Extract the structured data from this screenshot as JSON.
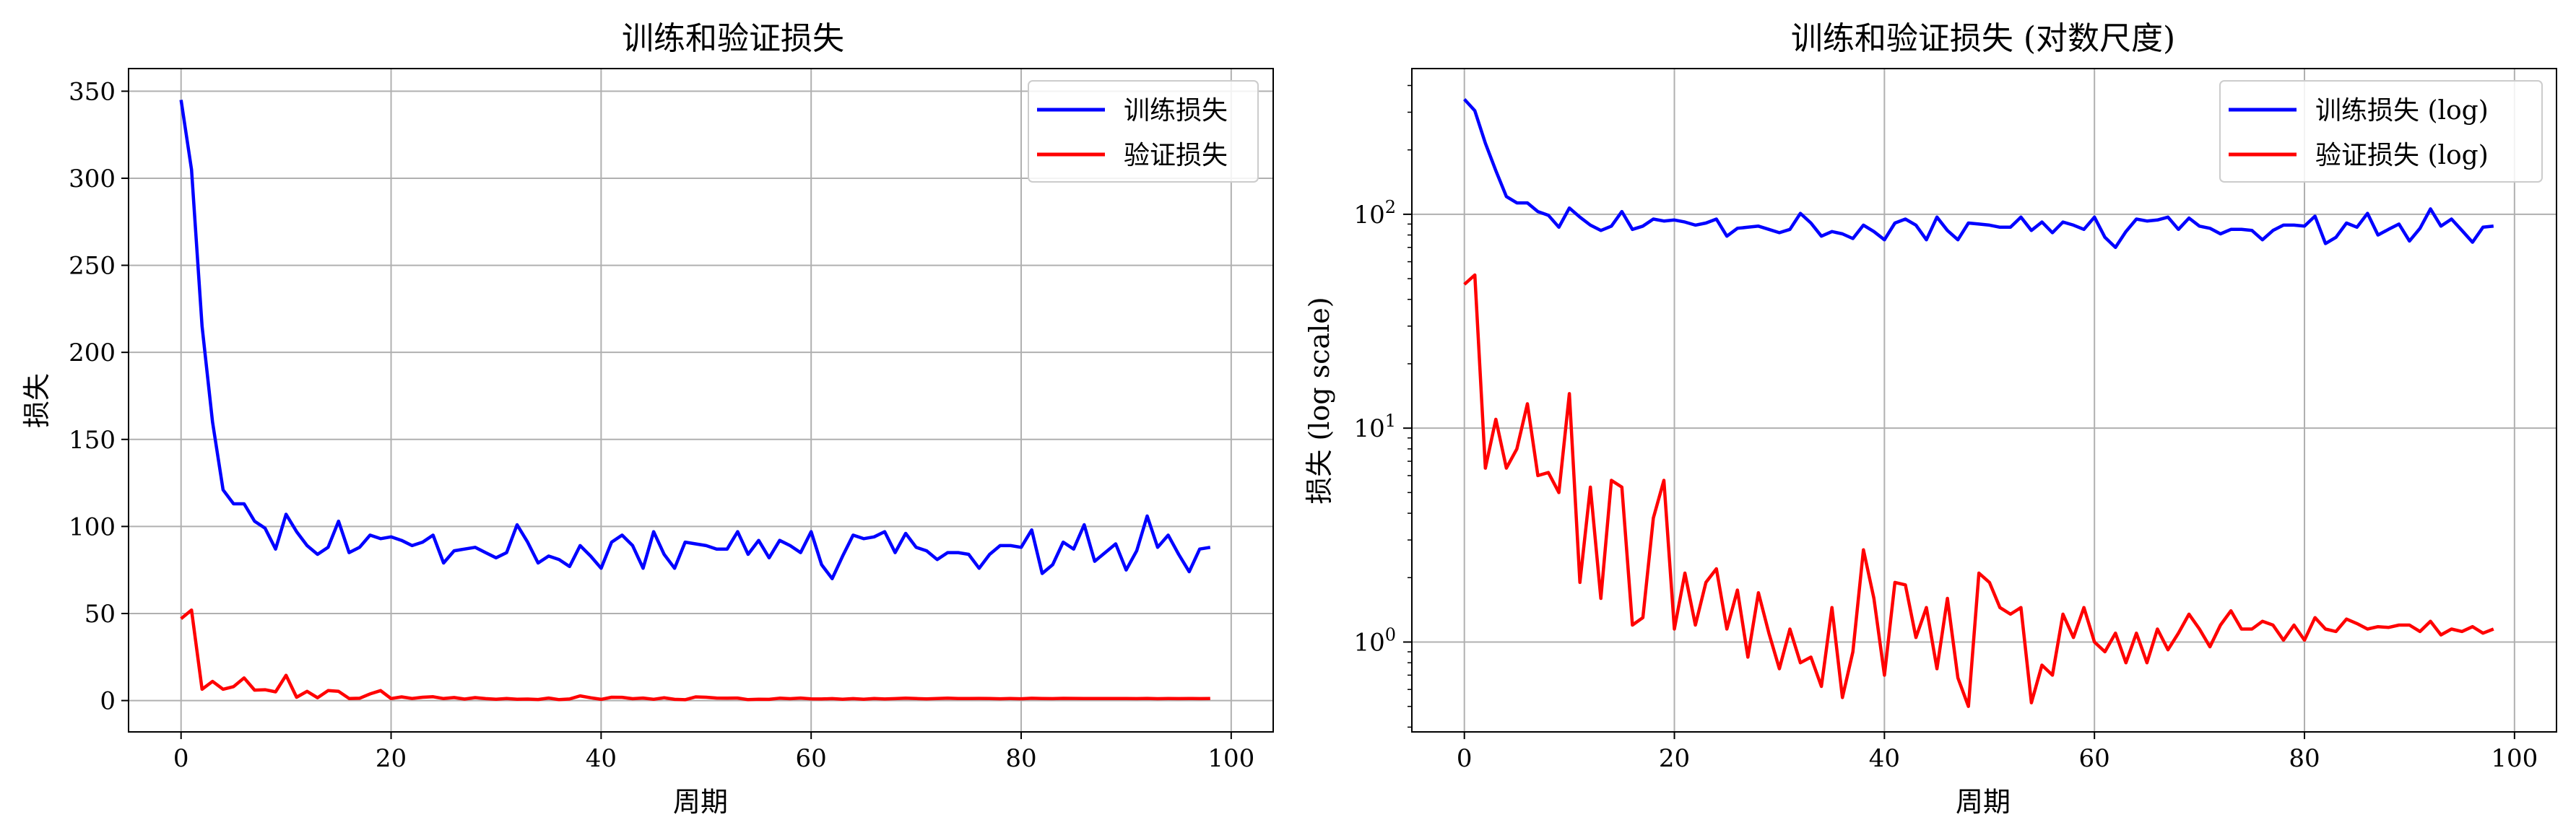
{
  "colors": {
    "train": "#0000ff",
    "val": "#ff0000",
    "grid": "#b0b0b0"
  },
  "chart_data": [
    {
      "type": "line",
      "title": "训练和验证损失",
      "xlabel": "周期",
      "ylabel": "损失",
      "yscale": "linear",
      "xlim": [
        -5,
        104
      ],
      "ylim": [
        -18,
        363
      ],
      "xticks": [
        "0",
        "20",
        "40",
        "60",
        "80",
        "100"
      ],
      "yticks": [
        "0",
        "50",
        "100",
        "150",
        "200",
        "250",
        "300",
        "350"
      ],
      "grid": true,
      "legend_position": "top-right",
      "x": [
        0,
        1,
        2,
        3,
        4,
        5,
        6,
        7,
        8,
        9,
        10,
        11,
        12,
        13,
        14,
        15,
        16,
        17,
        18,
        19,
        20,
        21,
        22,
        23,
        24,
        25,
        26,
        27,
        28,
        29,
        30,
        31,
        32,
        33,
        34,
        35,
        36,
        37,
        38,
        39,
        40,
        41,
        42,
        43,
        44,
        45,
        46,
        47,
        48,
        49,
        50,
        51,
        52,
        53,
        54,
        55,
        56,
        57,
        58,
        59,
        60,
        61,
        62,
        63,
        64,
        65,
        66,
        67,
        68,
        69,
        70,
        71,
        72,
        73,
        74,
        75,
        76,
        77,
        78,
        79,
        80,
        81,
        82,
        83,
        84,
        85,
        86,
        87,
        88,
        89,
        90,
        91,
        92,
        93,
        94,
        95,
        96,
        97,
        98
      ],
      "series": [
        {
          "name": "训练损失",
          "color": "train",
          "values": [
            345,
            305,
            215,
            160,
            121,
            113,
            113,
            103,
            99,
            87,
            107,
            97,
            89,
            84,
            88,
            103,
            85,
            88,
            95,
            93,
            94,
            92,
            89,
            91,
            95,
            79,
            86,
            87,
            88,
            85,
            82,
            85,
            101,
            91,
            79,
            83,
            81,
            77,
            89,
            83,
            76,
            91,
            95,
            89,
            76,
            97,
            84,
            76,
            91,
            90,
            89,
            87,
            87,
            97,
            84,
            92,
            82,
            92,
            89,
            85,
            97,
            78,
            70,
            83,
            95,
            93,
            94,
            97,
            85,
            96,
            88,
            86,
            81,
            85,
            85,
            84,
            76,
            84,
            89,
            89,
            88,
            98,
            73,
            78,
            91,
            87,
            101,
            80,
            85,
            90,
            75,
            86,
            106,
            88,
            95,
            84,
            74,
            87,
            88
          ]
        },
        {
          "name": "验证损失",
          "color": "val",
          "values": [
            47,
            52,
            6.5,
            11,
            6.5,
            8,
            13,
            6,
            6.2,
            5,
            14.5,
            1.9,
            5.3,
            1.6,
            5.7,
            5.3,
            1.2,
            1.3,
            3.8,
            5.7,
            1.15,
            2.1,
            1.2,
            1.9,
            2.2,
            1.15,
            1.75,
            0.85,
            1.7,
            1.1,
            0.75,
            1.15,
            0.8,
            0.85,
            0.62,
            1.45,
            0.55,
            0.9,
            2.7,
            1.6,
            0.7,
            1.9,
            1.85,
            1.05,
            1.45,
            0.75,
            1.6,
            0.68,
            0.5,
            2.1,
            1.9,
            1.45,
            1.35,
            1.45,
            0.52,
            0.78,
            0.7,
            1.35,
            1.05,
            1.45,
            1.0,
            0.9,
            1.1,
            0.8,
            1.1,
            0.8,
            1.15,
            0.92,
            1.1,
            1.35,
            1.15,
            0.95,
            1.2,
            1.4,
            1.15,
            1.15,
            1.25,
            1.2,
            1.02,
            1.2,
            1.02,
            1.3,
            1.15,
            1.12,
            1.28,
            1.22,
            1.15,
            1.18,
            1.17,
            1.2,
            1.2,
            1.12,
            1.25,
            1.08,
            1.15,
            1.12,
            1.18,
            1.1,
            1.15
          ]
        }
      ]
    },
    {
      "type": "line",
      "title": "训练和验证损失 (对数尺度)",
      "xlabel": "周期",
      "ylabel": "损失 (log scale)",
      "yscale": "log",
      "xlim": [
        -5,
        104
      ],
      "ylim": [
        0.38,
        480
      ],
      "xticks": [
        "0",
        "20",
        "40",
        "60",
        "80",
        "100"
      ],
      "yticks": [
        {
          "base": "10",
          "exp": "0"
        },
        {
          "base": "10",
          "exp": "1"
        },
        {
          "base": "10",
          "exp": "2"
        }
      ],
      "grid": true,
      "legend_position": "top-right",
      "x": "same as left panel",
      "series": [
        {
          "name": "训练损失 (log)",
          "color": "train",
          "values": "same as left panel"
        },
        {
          "name": "验证损失 (log)",
          "color": "val",
          "values": "same as left panel"
        }
      ]
    }
  ]
}
